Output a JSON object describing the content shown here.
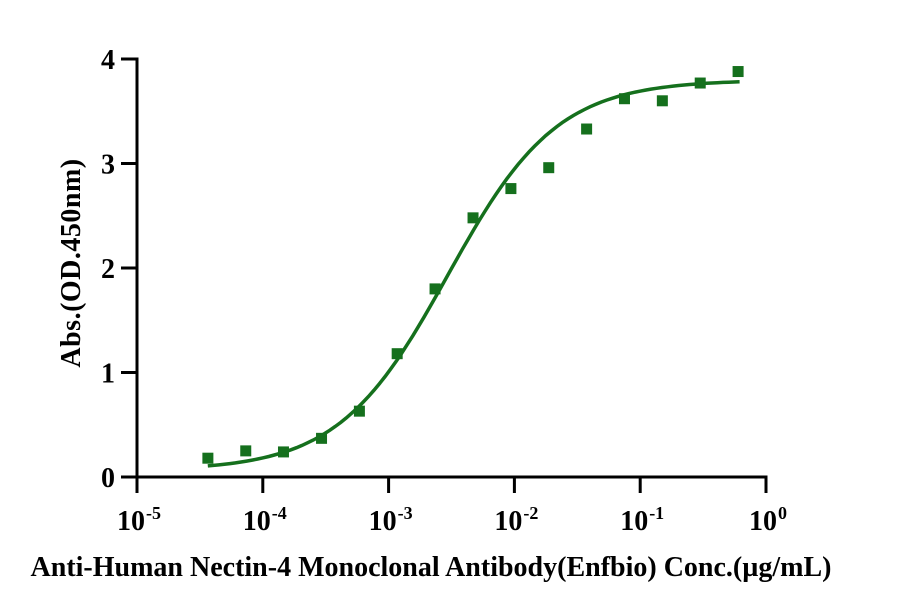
{
  "chart_data": {
    "type": "scatter",
    "subtype": "dose-response-curve-with-4PL-fit",
    "title": "",
    "xlabel": "Anti-Human Nectin-4 Monoclonal Antibody(Enfbio) Conc.(µg/mL)",
    "ylabel": "Abs.(OD.450nm)",
    "x_scale": "log10",
    "xlim_log": [
      -5,
      0
    ],
    "ylim": [
      0,
      4
    ],
    "x_tick_exponents": [
      -5,
      -4,
      -3,
      -2,
      -1,
      0
    ],
    "x_tick_base": "10",
    "y_ticks": [
      0,
      1,
      2,
      3,
      4
    ],
    "grid": "off",
    "legend": null,
    "marker": "filled-square",
    "points": [
      {
        "x": 3.66e-05,
        "y": 0.18
      },
      {
        "x": 7.32e-05,
        "y": 0.25
      },
      {
        "x": 0.000146,
        "y": 0.24
      },
      {
        "x": 0.000293,
        "y": 0.37
      },
      {
        "x": 0.000586,
        "y": 0.63
      },
      {
        "x": 0.00117,
        "y": 1.18
      },
      {
        "x": 0.00234,
        "y": 1.8
      },
      {
        "x": 0.00469,
        "y": 2.48
      },
      {
        "x": 0.00938,
        "y": 2.76
      },
      {
        "x": 0.01875,
        "y": 2.96
      },
      {
        "x": 0.0375,
        "y": 3.33
      },
      {
        "x": 0.075,
        "y": 3.62
      },
      {
        "x": 0.15,
        "y": 3.6
      },
      {
        "x": 0.3,
        "y": 3.77
      },
      {
        "x": 0.6,
        "y": 3.88
      }
    ],
    "fit": {
      "model": "4PL",
      "bottom": 0.06,
      "top": 3.8,
      "logEC50": -2.53,
      "hill": 1.0,
      "log_x_start": -4.437,
      "log_x_end": -0.21
    },
    "colors": {
      "series": "#15701d",
      "axis": "#000000",
      "text": "#000000",
      "background": "#ffffff"
    }
  }
}
